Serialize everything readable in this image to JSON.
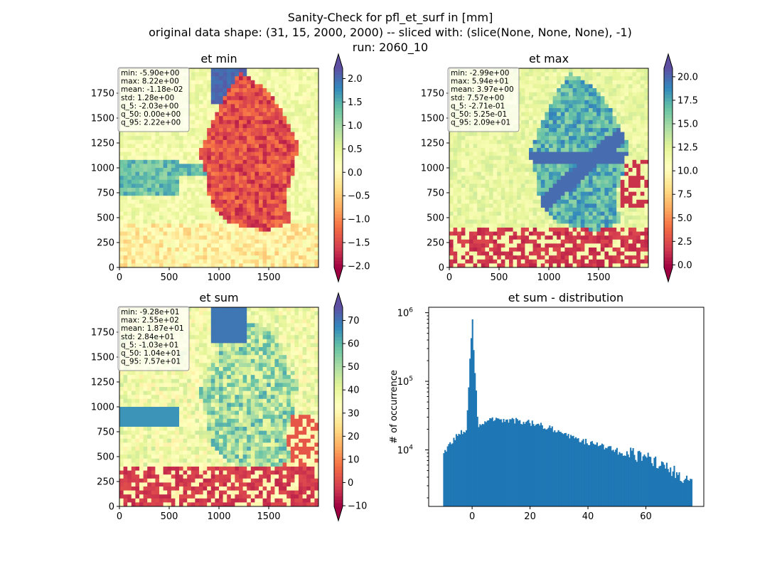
{
  "figure": {
    "title_lines": [
      "Sanity-Check for pfl_et_surf in [mm]",
      "original data shape: (31, 15, 2000, 2000) -- sliced with: (slice(None, None, None), -1)",
      "run: 2060_10"
    ]
  },
  "panels": [
    {
      "title": "et min",
      "stats": [
        "min: -5.90e+00",
        "max: 8.22e+00",
        "mean: -1.18e-02",
        "std: 1.28e+00",
        "q_5: -2.03e+00",
        "q_50: 0.00e+00",
        "q_95: 2.22e+00"
      ],
      "x_ticks": [
        "0",
        "500",
        "1000",
        "1500"
      ],
      "y_ticks": [
        "0",
        "250",
        "500",
        "750",
        "1000",
        "1250",
        "1500",
        "1750"
      ],
      "colorbar_ticks": [
        "-2.0",
        "−1.5",
        "−1.0",
        "−0.5",
        "0.0",
        "0.5",
        "1.0",
        "1.5",
        "2.0"
      ],
      "colorbar_ticks_display": [
        "−2.0",
        "−1.5",
        "−1.0",
        "−0.5",
        "0.0",
        "0.5",
        "1.0",
        "1.5",
        "2.0"
      ]
    },
    {
      "title": "et max",
      "stats": [
        "min: -2.99e+00",
        "max: 5.94e+01",
        "mean: 3.97e+00",
        "std: 7.57e+00",
        "q_5: -2.71e-01",
        "q_50: 5.25e-01",
        "q_95: 2.09e+01"
      ],
      "x_ticks": [
        "0",
        "500",
        "1000",
        "1500"
      ],
      "y_ticks": [
        "0",
        "250",
        "500",
        "750",
        "1000",
        "1250",
        "1500",
        "1750"
      ],
      "colorbar_ticks_display": [
        "0.0",
        "2.5",
        "5.0",
        "7.5",
        "10.0",
        "12.5",
        "15.0",
        "17.5",
        "20.0"
      ]
    },
    {
      "title": "et sum",
      "stats": [
        "min: -9.28e+01",
        "max: 2.55e+02",
        "mean: 1.87e+01",
        "std: 2.84e+01",
        "q_5: -1.03e+01",
        "q_50: 1.04e+01",
        "q_95: 7.57e+01"
      ],
      "x_ticks": [
        "0",
        "500",
        "1000",
        "1500"
      ],
      "y_ticks": [
        "0",
        "250",
        "500",
        "750",
        "1000",
        "1250",
        "1500",
        "1750"
      ],
      "colorbar_ticks_display": [
        "−10",
        "0",
        "10",
        "20",
        "30",
        "40",
        "50",
        "60",
        "70"
      ]
    }
  ],
  "chart_data": [
    {
      "type": "heatmap",
      "title": "et min",
      "xlim": [
        0,
        2000
      ],
      "ylim": [
        0,
        2000
      ],
      "colormap": "Spectral",
      "color_range": [
        -2.03,
        2.22
      ]
    },
    {
      "type": "heatmap",
      "title": "et max",
      "xlim": [
        0,
        2000
      ],
      "ylim": [
        0,
        2000
      ],
      "colormap": "Spectral",
      "color_range": [
        -0.271,
        20.9
      ]
    },
    {
      "type": "heatmap",
      "title": "et sum",
      "xlim": [
        0,
        2000
      ],
      "ylim": [
        0,
        2000
      ],
      "colormap": "Spectral",
      "color_range": [
        -10.3,
        75.7
      ]
    },
    {
      "type": "bar",
      "title": "et sum - distribution",
      "xlabel": "",
      "ylabel": "# of occurrence",
      "y_scale": "log",
      "xlim": [
        -15,
        80
      ],
      "ylim": [
        1500,
        1200000
      ],
      "x_ticks": [
        0,
        20,
        40,
        60
      ],
      "y_tick_labels": [
        "10⁴",
        "10⁵",
        "10⁶"
      ],
      "bar_color": "#1f77b4",
      "bins": {
        "start": -10,
        "end": 75.7,
        "width": 0.43
      },
      "envelope": [
        [
          -10,
          8000
        ],
        [
          -8,
          12000
        ],
        [
          -6,
          15000
        ],
        [
          -4,
          18000
        ],
        [
          -2,
          20000
        ],
        [
          0,
          800000
        ],
        [
          2,
          23000
        ],
        [
          4,
          25500
        ],
        [
          6,
          27000
        ],
        [
          8,
          28000
        ],
        [
          10,
          28000
        ],
        [
          12,
          27500
        ],
        [
          14,
          27000
        ],
        [
          16,
          26500
        ],
        [
          18,
          25500
        ],
        [
          20,
          25000
        ],
        [
          22,
          24000
        ],
        [
          24,
          22500
        ],
        [
          26,
          21000
        ],
        [
          28,
          20000
        ],
        [
          30,
          18000
        ],
        [
          32,
          16500
        ],
        [
          34,
          15500
        ],
        [
          36,
          14500
        ],
        [
          38,
          13500
        ],
        [
          40,
          13000
        ],
        [
          42,
          12000
        ],
        [
          44,
          11500
        ],
        [
          46,
          11000
        ],
        [
          48,
          10500
        ],
        [
          50,
          10000
        ],
        [
          52,
          9500
        ],
        [
          54,
          9200
        ],
        [
          56,
          8800
        ],
        [
          58,
          8400
        ],
        [
          60,
          7800
        ],
        [
          62,
          7200
        ],
        [
          64,
          6700
        ],
        [
          66,
          6200
        ],
        [
          68,
          5700
        ],
        [
          70,
          5000
        ],
        [
          72,
          4500
        ],
        [
          74,
          3800
        ],
        [
          75.7,
          3500
        ]
      ]
    }
  ]
}
